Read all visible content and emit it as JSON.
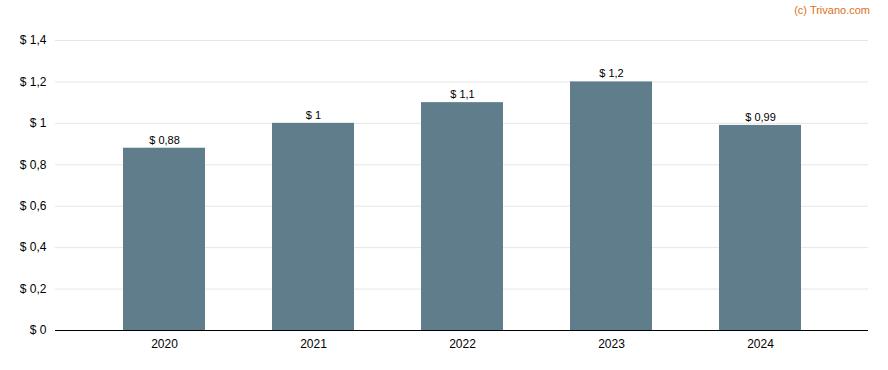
{
  "chart_data": {
    "type": "bar",
    "categories": [
      "2020",
      "2021",
      "2022",
      "2023",
      "2024"
    ],
    "values": [
      0.88,
      1.0,
      1.1,
      1.2,
      0.99
    ],
    "value_labels": [
      "$ 0,88",
      "$ 1",
      "$ 1,1",
      "$ 1,2",
      "$ 0,99"
    ],
    "data_labels": true,
    "color": "#607d8b",
    "ylim": [
      0,
      1.4
    ],
    "yticks": [
      {
        "value": 0,
        "label": "$ 0"
      },
      {
        "value": 0.2,
        "label": "$ 0,2"
      },
      {
        "value": 0.4,
        "label": "$ 0,4"
      },
      {
        "value": 0.6,
        "label": "$ 0,6"
      },
      {
        "value": 0.8,
        "label": "$ 0,8"
      },
      {
        "value": 1.0,
        "label": "$ 1"
      },
      {
        "value": 1.2,
        "label": "$ 1,2"
      },
      {
        "value": 1.4,
        "label": "$ 1,4"
      }
    ],
    "grid": true,
    "annotations": [
      {
        "text": "(c) Trivano.com",
        "color": "#e07020"
      }
    ]
  }
}
